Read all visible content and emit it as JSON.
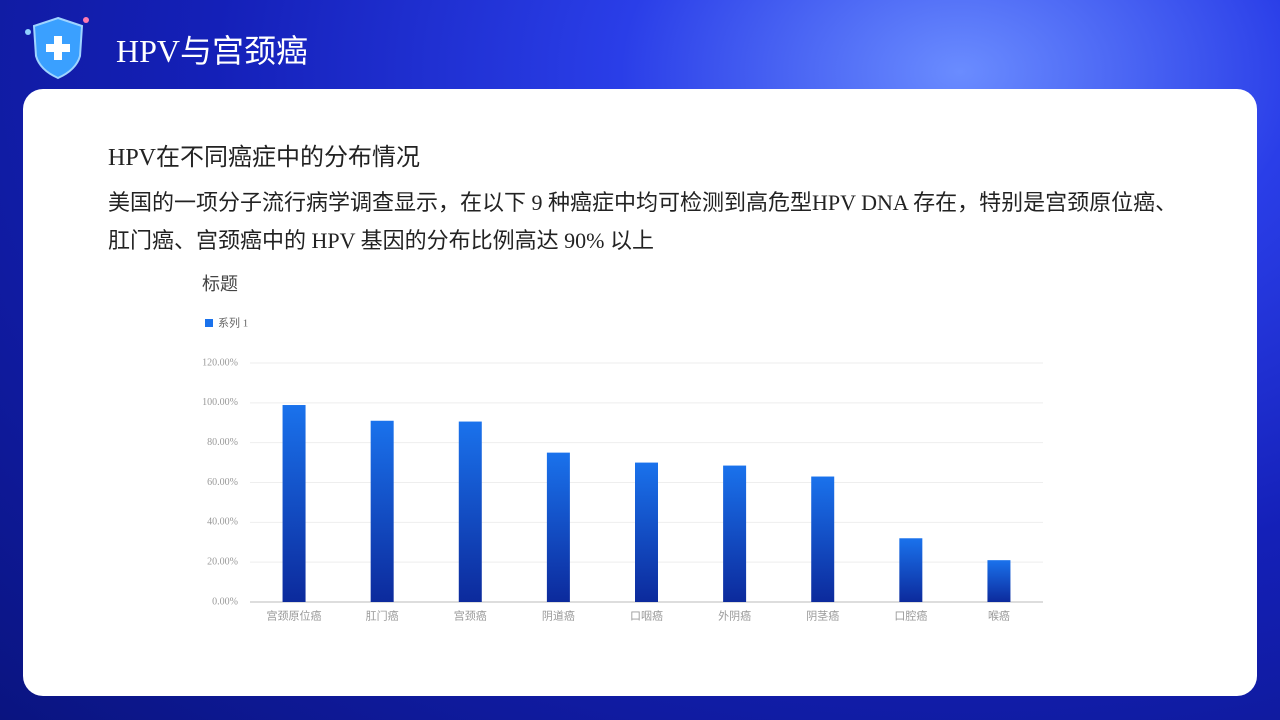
{
  "header": {
    "title": "HPV与宫颈癌"
  },
  "section": {
    "heading": "HPV在不同癌症中的分布情况",
    "paragraph": "美国的一项分子流行病学调查显示，在以下 9 种癌症中均可检测到高危型HPV  DNA 存在，特别是宫颈原位癌、肛门癌、宫颈癌中的 HPV 基因的分布比例高达 90% 以上"
  },
  "chart_data": {
    "type": "bar",
    "title": "标题",
    "categories": [
      "宫颈原位癌",
      "肛门癌",
      "宫颈癌",
      "阴道癌",
      "口咽癌",
      "外阴癌",
      "阴茎癌",
      "口腔癌",
      "喉癌"
    ],
    "series": [
      {
        "name": "系列 1",
        "color": "#1a72ec",
        "values": [
          98.9,
          91,
          90.6,
          75,
          70,
          68.5,
          63,
          32,
          21
        ]
      }
    ],
    "ylim": [
      0,
      120
    ],
    "yticks": [
      {
        "value": 0,
        "label": "0.00%"
      },
      {
        "value": 20,
        "label": "20.00%"
      },
      {
        "value": 40,
        "label": "40.00%"
      },
      {
        "value": 60,
        "label": "60.00%"
      },
      {
        "value": 80,
        "label": "80.00%"
      },
      {
        "value": 100,
        "label": "100.00%"
      },
      {
        "value": 120,
        "label": "120.00%"
      }
    ],
    "grid": true,
    "legend": "top-left"
  }
}
